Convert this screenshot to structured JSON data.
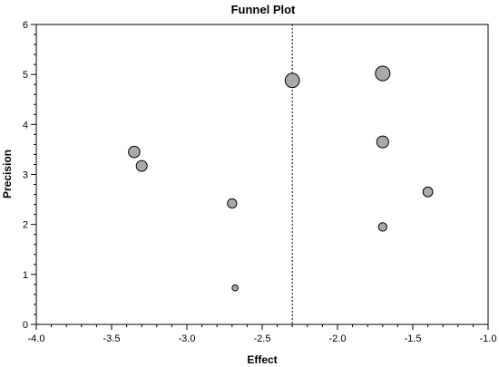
{
  "chart_data": {
    "type": "scatter",
    "title": "Funnel Plot",
    "xlabel": "Effect",
    "ylabel": "Precision",
    "xlim": [
      -4.0,
      -1.0
    ],
    "ylim": [
      0,
      6
    ],
    "x_ticks": [
      "-4.0",
      "-3.5",
      "-3.0",
      "-2.5",
      "-2.0",
      "-1.5",
      "-1.0"
    ],
    "y_ticks": [
      "0",
      "1",
      "2",
      "3",
      "4",
      "5",
      "6"
    ],
    "grid": false,
    "reference_line_x": -2.3,
    "points": [
      {
        "x": -2.3,
        "y": 4.88
      },
      {
        "x": -1.7,
        "y": 5.02
      },
      {
        "x": -1.7,
        "y": 3.65
      },
      {
        "x": -1.4,
        "y": 2.65
      },
      {
        "x": -1.7,
        "y": 1.95
      },
      {
        "x": -3.35,
        "y": 3.45
      },
      {
        "x": -3.3,
        "y": 3.17
      },
      {
        "x": -2.7,
        "y": 2.42
      },
      {
        "x": -2.68,
        "y": 0.73
      }
    ],
    "marker_color": "#a9a9a9"
  }
}
